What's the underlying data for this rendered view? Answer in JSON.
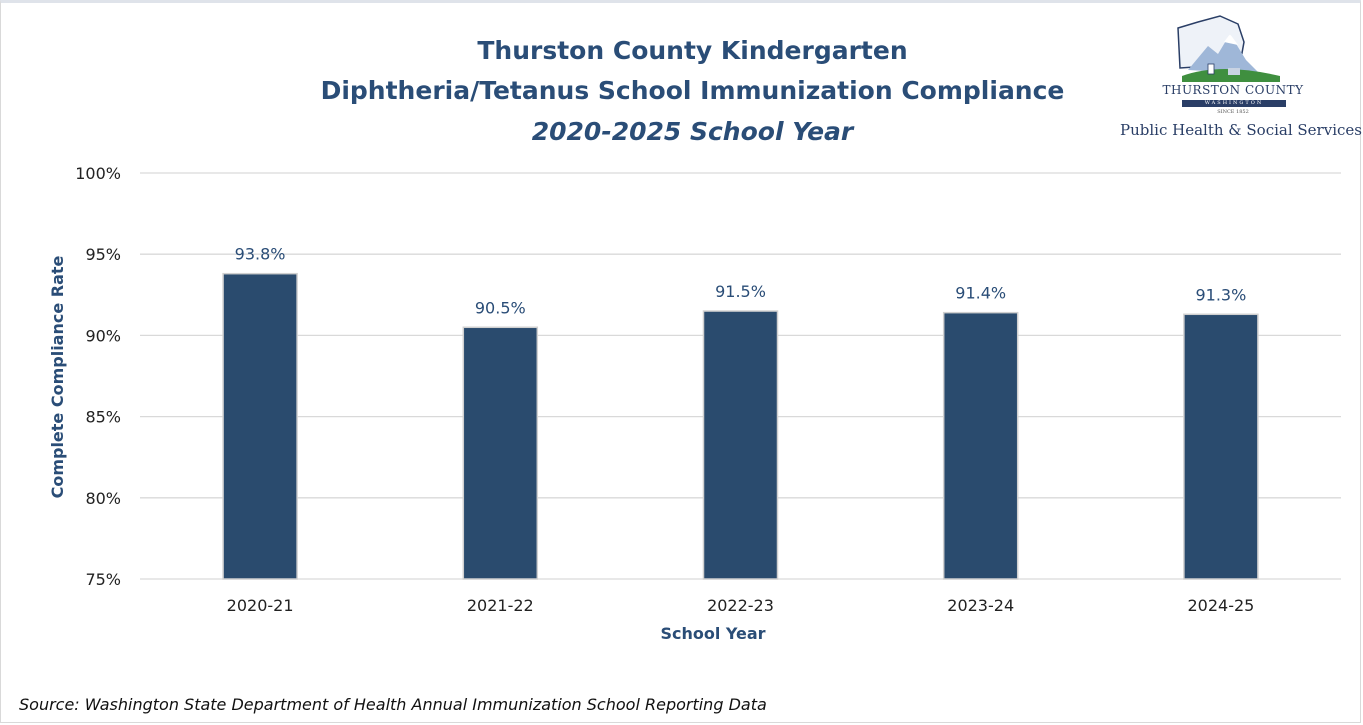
{
  "chart_data": {
    "type": "bar",
    "title": [
      "Thurston County Kindergarten",
      "Diphtheria/Tetanus School Immunization Compliance",
      "2020-2025 School Year"
    ],
    "xlabel": "School Year",
    "ylabel": "Complete Compliance Rate",
    "categories": [
      "2020-21",
      "2021-22",
      "2022-23",
      "2023-24",
      "2024-25"
    ],
    "values": [
      93.8,
      90.5,
      91.5,
      91.4,
      91.3
    ],
    "data_labels": [
      "93.8%",
      "90.5%",
      "91.5%",
      "91.4%",
      "91.3%"
    ],
    "ylim": [
      75,
      100
    ],
    "yticks": [
      100,
      95,
      90,
      85,
      80,
      75
    ],
    "ytick_labels": [
      "100%",
      "95%",
      "90%",
      "85%",
      "80%",
      "75%"
    ],
    "grid": true,
    "legend": "none",
    "colors": {
      "bar": "#2a4b6e",
      "bar_outline": "#d0d0d0",
      "title": "#2a4d77",
      "label": "#2a4d77",
      "grid": "#d9d9d9"
    }
  },
  "logo": {
    "name": "THURSTON COUNTY",
    "state": "WASHINGTON",
    "since": "SINCE 1852",
    "department": "Public Health & Social Services"
  },
  "source": "Source: Washington State Department of Health Annual Immunization School Reporting Data"
}
